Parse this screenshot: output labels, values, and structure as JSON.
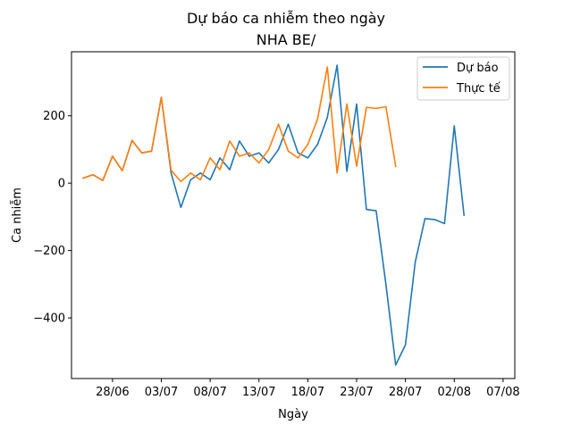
{
  "chart_data": {
    "type": "line",
    "title": "Dự báo ca nhiễm theo ngày",
    "subtitle": "NHA BE/",
    "xlabel": "Ngày",
    "ylabel": "Ca nhiễm",
    "x_start": "2021-06-25",
    "x_tick_labels": [
      "28/06",
      "03/07",
      "08/07",
      "13/07",
      "18/07",
      "23/07",
      "28/07",
      "02/08",
      "07/08"
    ],
    "x_tick_days": [
      3,
      8,
      13,
      18,
      23,
      28,
      33,
      38,
      43
    ],
    "xlim": [
      -1.2,
      44.2
    ],
    "y_ticks": [
      -400,
      -200,
      0,
      200
    ],
    "y_tick_labels": [
      "−400",
      "−200",
      "0",
      "200"
    ],
    "ylim": [
      -580,
      390
    ],
    "legend_position": "upper right",
    "series": [
      {
        "name": "Dự báo",
        "color": "#1f77b4",
        "x": [
          0,
          1,
          2,
          3,
          4,
          5,
          6,
          7,
          8,
          9,
          10,
          11,
          12,
          13,
          14,
          15,
          16,
          17,
          18,
          19,
          20,
          21,
          22,
          23,
          24,
          25,
          26,
          27,
          28,
          29,
          30,
          31,
          32,
          33,
          34,
          35,
          36,
          37,
          38,
          39,
          40
        ],
        "values": [
          15,
          25,
          8,
          80,
          37,
          127,
          90,
          95,
          255,
          30,
          -72,
          10,
          30,
          10,
          75,
          40,
          125,
          80,
          90,
          60,
          100,
          175,
          90,
          75,
          115,
          195,
          350,
          35,
          235,
          -78,
          -82,
          -300,
          -540,
          -480,
          -235,
          -105,
          -108,
          -120,
          170,
          -95,
          null
        ]
      },
      {
        "name": "Thực tế",
        "color": "#ff7f0e",
        "x": [
          0,
          1,
          2,
          3,
          4,
          5,
          6,
          7,
          8,
          9,
          10,
          11,
          12,
          13,
          14,
          15,
          16,
          17,
          18,
          19,
          20,
          21,
          22,
          23,
          24,
          25,
          26,
          27,
          28,
          29,
          30,
          31,
          32
        ],
        "values": [
          15,
          25,
          8,
          80,
          37,
          127,
          90,
          95,
          255,
          38,
          5,
          30,
          10,
          75,
          40,
          125,
          80,
          90,
          60,
          100,
          175,
          95,
          75,
          115,
          190,
          345,
          30,
          235,
          50,
          225,
          222,
          227,
          50
        ]
      }
    ]
  }
}
